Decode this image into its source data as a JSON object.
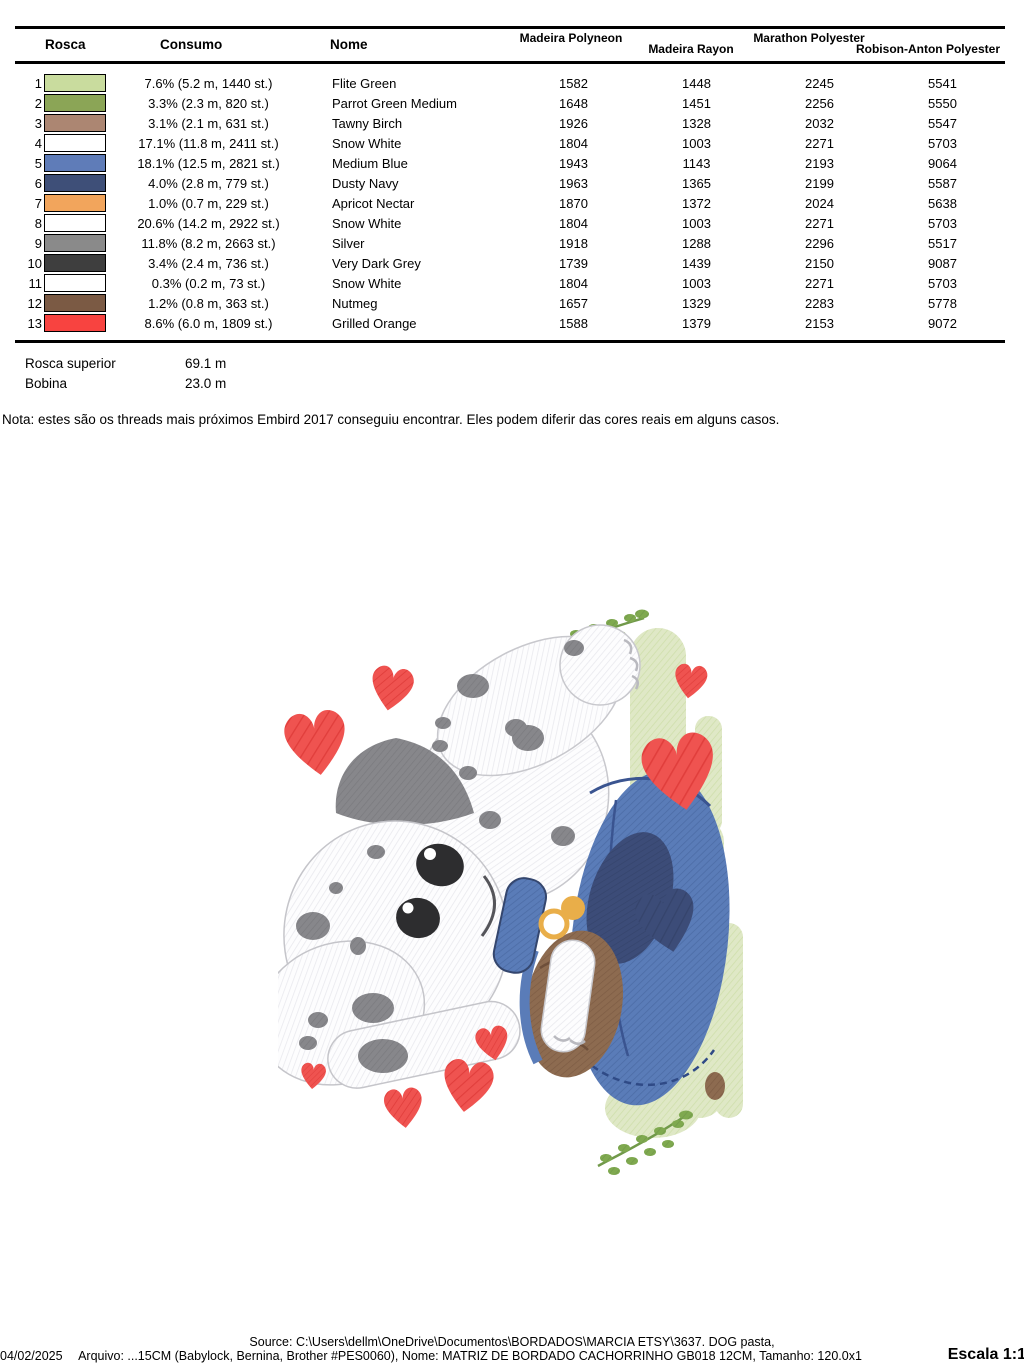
{
  "table": {
    "headers": {
      "rosca": "Rosca",
      "consumo": "Consumo",
      "nome": "Nome",
      "madeira_polyneon": "Madeira Polyneon",
      "madeira_rayon": "Madeira Rayon",
      "marathon_polyester": "Marathon Polyester",
      "robison_anton_polyester": "Robison-Anton Polyester"
    },
    "rows": [
      {
        "num": "1",
        "color": "#c9dc9e",
        "consumo": "7.6% (5.2 m, 1440 st.)",
        "nome": "Flite Green",
        "polyneon": "1582",
        "rayon": "1448",
        "marathon": "2245",
        "robison": "5541"
      },
      {
        "num": "2",
        "color": "#8ba556",
        "consumo": "3.3% (2.3 m, 820 st.)",
        "nome": "Parrot Green Medium",
        "polyneon": "1648",
        "rayon": "1451",
        "marathon": "2256",
        "robison": "5550"
      },
      {
        "num": "3",
        "color": "#ac8672",
        "consumo": "3.1% (2.1 m, 631 st.)",
        "nome": "Tawny Birch",
        "polyneon": "1926",
        "rayon": "1328",
        "marathon": "2032",
        "robison": "5547"
      },
      {
        "num": "4",
        "color": "#ffffff",
        "consumo": "17.1% (11.8 m, 2411 st.)",
        "nome": "Snow White",
        "polyneon": "1804",
        "rayon": "1003",
        "marathon": "2271",
        "robison": "5703"
      },
      {
        "num": "5",
        "color": "#5f7cb8",
        "consumo": "18.1% (12.5 m, 2821 st.)",
        "nome": "Medium Blue",
        "polyneon": "1943",
        "rayon": "1143",
        "marathon": "2193",
        "robison": "9064"
      },
      {
        "num": "6",
        "color": "#3e4f78",
        "consumo": "4.0% (2.8 m, 779 st.)",
        "nome": "Dusty Navy",
        "polyneon": "1963",
        "rayon": "1365",
        "marathon": "2199",
        "robison": "5587"
      },
      {
        "num": "7",
        "color": "#f2a55c",
        "consumo": "1.0% (0.7 m, 229 st.)",
        "nome": "Apricot Nectar",
        "polyneon": "1870",
        "rayon": "1372",
        "marathon": "2024",
        "robison": "5638"
      },
      {
        "num": "8",
        "color": "#ffffff",
        "consumo": "20.6% (14.2 m, 2922 st.)",
        "nome": "Snow White",
        "polyneon": "1804",
        "rayon": "1003",
        "marathon": "2271",
        "robison": "5703"
      },
      {
        "num": "9",
        "color": "#8a8a8a",
        "consumo": "11.8% (8.2 m, 2663 st.)",
        "nome": "Silver",
        "polyneon": "1918",
        "rayon": "1288",
        "marathon": "2296",
        "robison": "5517"
      },
      {
        "num": "10",
        "color": "#3e3e3e",
        "consumo": "3.4% (2.4 m, 736 st.)",
        "nome": "Very Dark Grey",
        "polyneon": "1739",
        "rayon": "1439",
        "marathon": "2150",
        "robison": "9087"
      },
      {
        "num": "11",
        "color": "#ffffff",
        "consumo": "0.3% (0.2 m, 73 st.)",
        "nome": "Snow White",
        "polyneon": "1804",
        "rayon": "1003",
        "marathon": "2271",
        "robison": "5703"
      },
      {
        "num": "12",
        "color": "#7b5a44",
        "consumo": "1.2% (0.8 m, 363 st.)",
        "nome": "Nutmeg",
        "polyneon": "1657",
        "rayon": "1329",
        "marathon": "2283",
        "robison": "5778"
      },
      {
        "num": "13",
        "color": "#f84340",
        "consumo": "8.6% (6.0 m, 1809 st.)",
        "nome": "Grilled Orange",
        "polyneon": "1588",
        "rayon": "1379",
        "marathon": "2153",
        "robison": "9072"
      }
    ]
  },
  "summary": {
    "rosca_superior_label": "Rosca superior",
    "rosca_superior_value": "69.1 m",
    "bobina_label": "Bobina",
    "bobina_value": "23.0 m"
  },
  "note": "Nota: estes são os threads mais próximos Embird 2017 conseguiu encontrar. Eles podem diferir das cores reais em alguns casos.",
  "footer": {
    "date": "04/02/2025",
    "source_line": "Source: C:\\Users\\dellm\\OneDrive\\Documentos\\BORDADOS\\MARCIA ETSY\\3637. DOG pasta,",
    "file_line": "Arquivo: ...15CM (Babylock, Bernina, Brother #PES0060), Nome: MATRIZ DE BORDADO CACHORRINHO GB018 12CM, Tamanho: 120.0x1",
    "scale": "Escala 1:1"
  },
  "artwork": {
    "palette": {
      "fabric_white": "#fdfdfe",
      "light_green": "#dfe8c6",
      "leaf_green": "#7fa94f",
      "blue": "#5a7cb8",
      "navy": "#3c4c78",
      "red": "#ef5350",
      "brown": "#8d6b50",
      "grey": "#87878b",
      "gold": "#e9ae49"
    }
  }
}
